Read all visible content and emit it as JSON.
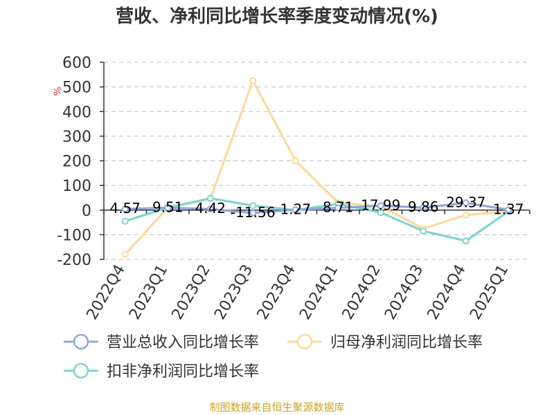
{
  "chart_data": {
    "type": "line",
    "title": "营收、净利同比增长率季度变动情况(%)",
    "ylabel": "%",
    "ylim": [
      -200,
      600
    ],
    "y_ticks": [
      600,
      500,
      400,
      300,
      200,
      100,
      0,
      -100,
      -200
    ],
    "grid": true,
    "legend_position": "bottom",
    "categories": [
      "2022Q4",
      "2023Q1",
      "2023Q2",
      "2023Q3",
      "2023Q4",
      "2024Q1",
      "2024Q2",
      "2024Q3",
      "2024Q4",
      "2025Q1"
    ],
    "series": [
      {
        "name": "营业总收入同比增长率",
        "color": "#8fa8d8",
        "values": [
          4.57,
          9.51,
          4.42,
          -11.56,
          1.27,
          8.71,
          17.99,
          9.86,
          29.37,
          1.37
        ],
        "labels": [
          "4.57",
          "9.51",
          "4.42",
          "-11.56",
          "1.27",
          "8.71",
          "17.99",
          "9.86",
          "29.37",
          "1.37"
        ]
      },
      {
        "name": "归母净利润同比增长率",
        "color": "#fcd99a",
        "values": [
          -180,
          10,
          45,
          525,
          200,
          30,
          15,
          -75,
          -20,
          -5
        ]
      },
      {
        "name": "扣非净利润同比增长率",
        "color": "#7fd3d3",
        "values": [
          -45,
          10,
          48,
          18,
          0,
          25,
          -10,
          -85,
          -125,
          -5
        ]
      }
    ]
  },
  "footer": "制图数据来自恒生聚源数据库"
}
